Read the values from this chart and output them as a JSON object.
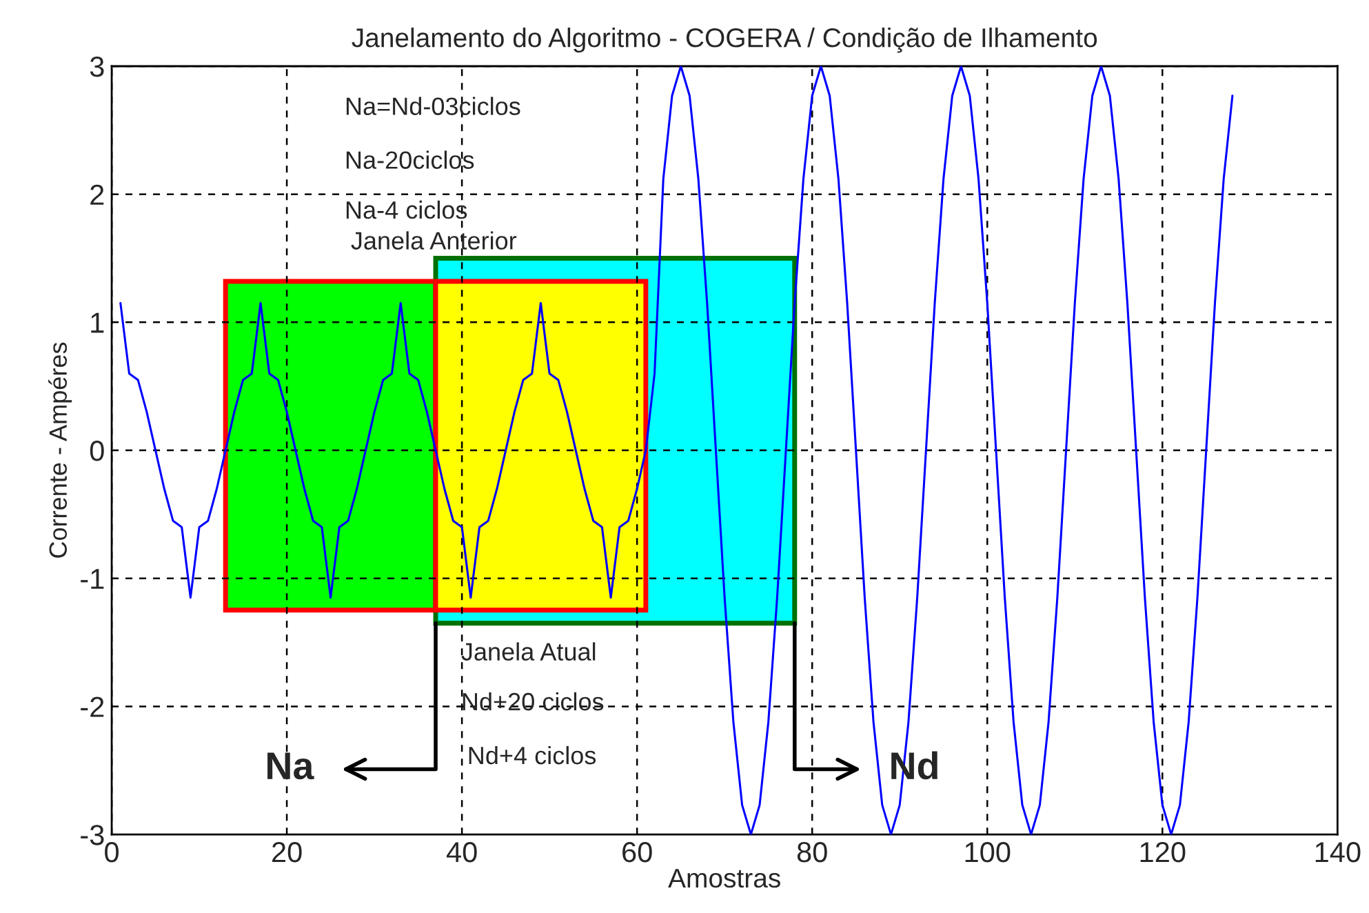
{
  "chart_data": {
    "type": "line",
    "title": "Janelamento do Algoritmo - COGERA / Condição de Ilhamento",
    "xlabel": "Amostras",
    "ylabel": "Corrente - Ampéres",
    "xlim": [
      0,
      140
    ],
    "xticks": [
      0,
      20,
      40,
      60,
      80,
      100,
      120,
      140
    ],
    "ylim": [
      -3,
      3
    ],
    "yticks": [
      -3,
      -2,
      -1,
      0,
      1,
      2,
      3
    ],
    "grid": true,
    "line_style": "solid",
    "marker": "none",
    "series": [
      {
        "color": "#0000ff",
        "x": [
          1,
          2,
          3,
          4,
          5,
          6,
          7,
          8,
          9,
          10,
          11,
          12,
          13,
          14,
          15,
          16,
          17,
          18,
          19,
          20,
          21,
          22,
          23,
          24,
          25,
          26,
          27,
          28,
          29,
          30,
          31,
          32,
          33,
          34,
          35,
          36,
          37,
          38,
          39,
          40,
          41,
          42,
          43,
          44,
          45,
          46,
          47,
          48,
          49,
          50,
          51,
          52,
          53,
          54,
          55,
          56,
          57,
          58,
          59,
          60,
          61,
          62,
          63,
          64,
          65,
          66,
          67,
          68,
          69,
          70,
          71,
          72,
          73,
          74,
          75,
          76,
          77,
          78,
          79,
          80,
          81,
          82,
          83,
          84,
          85,
          86,
          87,
          88,
          89,
          90,
          91,
          92,
          93,
          94,
          95,
          96,
          97,
          98,
          99,
          100,
          101,
          102,
          103,
          104,
          105,
          106,
          107,
          108,
          109,
          110,
          111,
          112,
          113,
          114,
          115,
          116,
          117,
          118,
          119,
          120,
          121,
          122,
          123,
          124,
          125,
          126,
          127,
          128
        ],
        "values": [
          1.15,
          0.6,
          0.55,
          0.3,
          0,
          -0.3,
          -0.55,
          -0.6,
          -1.15,
          -0.6,
          -0.55,
          -0.3,
          0,
          0.3,
          0.55,
          0.6,
          1.15,
          0.6,
          0.55,
          0.3,
          0,
          -0.3,
          -0.55,
          -0.6,
          -1.15,
          -0.6,
          -0.55,
          -0.3,
          0,
          0.3,
          0.55,
          0.6,
          1.15,
          0.6,
          0.55,
          0.3,
          0,
          -0.3,
          -0.55,
          -0.6,
          -1.15,
          -0.6,
          -0.55,
          -0.3,
          0,
          0.3,
          0.55,
          0.6,
          1.15,
          0.6,
          0.55,
          0.3,
          0,
          -0.3,
          -0.55,
          -0.6,
          -1.15,
          -0.6,
          -0.55,
          -0.3,
          0,
          0.6,
          2.12,
          2.77,
          3,
          2.77,
          2.12,
          1.15,
          0,
          -1.15,
          -2.12,
          -2.77,
          -3,
          -2.77,
          -2.12,
          -1.15,
          0,
          1.15,
          2.12,
          2.77,
          3,
          2.77,
          2.12,
          1.15,
          0,
          -1.15,
          -2.12,
          -2.77,
          -3,
          -2.77,
          -2.12,
          -1.15,
          0,
          1.15,
          2.12,
          2.77,
          3,
          2.77,
          2.12,
          1.15,
          0,
          -1.15,
          -2.12,
          -2.77,
          -3,
          -2.77,
          -2.12,
          -1.15,
          0,
          1.15,
          2.12,
          2.77,
          3,
          2.77,
          2.12,
          1.15,
          0,
          -1.15,
          -2.12,
          -2.77,
          -3,
          -2.77,
          -2.12,
          -1.15,
          0,
          1.15,
          2.12,
          2.77
        ]
      }
    ],
    "bands": [
      {
        "axis": "x",
        "from": 13,
        "to": 37,
        "color": "#00ff00"
      },
      {
        "axis": "x",
        "from": 37,
        "to": 78,
        "color": "#00ffff"
      },
      {
        "axis": "x",
        "from": 37,
        "to": 61,
        "color": "#ffff00"
      }
    ],
    "annotations": [
      "Na=Nd-03ciclos",
      "Na-20ciclos",
      "Na-4 ciclos",
      "Janela Anterior",
      "Janela Atual",
      "Nd+20 ciclos",
      "Nd+4 ciclos",
      {
        "text": "Na",
        "x": 37,
        "y": -1.35
      },
      {
        "text": "Nd",
        "x": 78,
        "y": -1.35
      }
    ]
  }
}
